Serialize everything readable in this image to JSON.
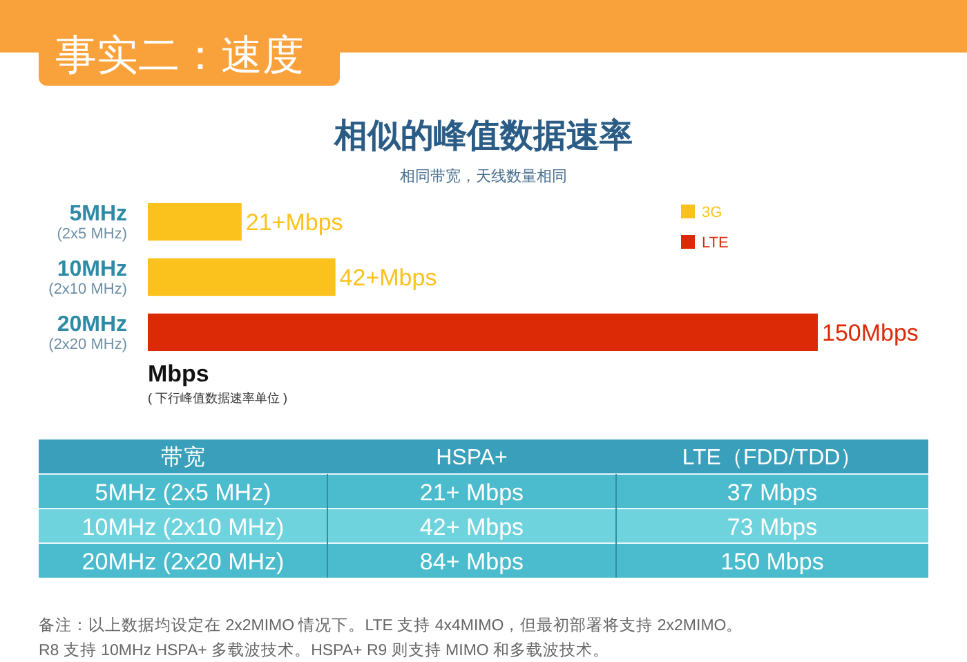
{
  "chart_data": [
    {
      "type": "bar",
      "orientation": "horizontal",
      "title": "相似的峰值数据速率",
      "subtitle": "相同带宽，天线数量相同",
      "xlabel": "Mbps",
      "annotations": [
        "事实二：速度",
        "( 下行峰值数据速率单位 )"
      ],
      "categories": [
        "5MHz\n(2x5 MHz)",
        "10MHz\n(2x10 MHz)",
        "20MHz\n(2x20 MHz)"
      ],
      "legend": "top right",
      "series": [
        {
          "name": "3G",
          "color": "#fbc21d",
          "values": [
            21,
            42,
            null
          ],
          "value_labels": [
            "21+Mbps",
            "42+Mbps",
            null
          ]
        },
        {
          "name": "LTE",
          "color": "#dc2a07",
          "values": [
            null,
            null,
            150
          ],
          "value_labels": [
            null,
            null,
            "150Mbps"
          ]
        }
      ]
    },
    {
      "type": "other",
      "categories": [
        "带宽",
        "HSPA+",
        "LTE（FDD/TDD）"
      ],
      "cell_labels": [
        [
          "5MHz (2x5 MHz)",
          "21+ Mbps",
          "37 Mbps"
        ],
        [
          "10MHz (2x10 MHz)",
          "42+ Mbps",
          "73 Mbps"
        ],
        [
          "20MHz (2x20 MHz)",
          "84+ Mbps",
          "150 Mbps"
        ]
      ],
      "annotations": [
        "备注：以上数据均设定在 2x2MIMO 情况下。LTE 支持 4x4MIMO，但最初部署将支持 2x2MIMO。",
        "R8 支持 10MHz HSPA+ 多载波技术。HSPA+ R9 则支持 MIMO 和多载波技术。"
      ]
    }
  ]
}
